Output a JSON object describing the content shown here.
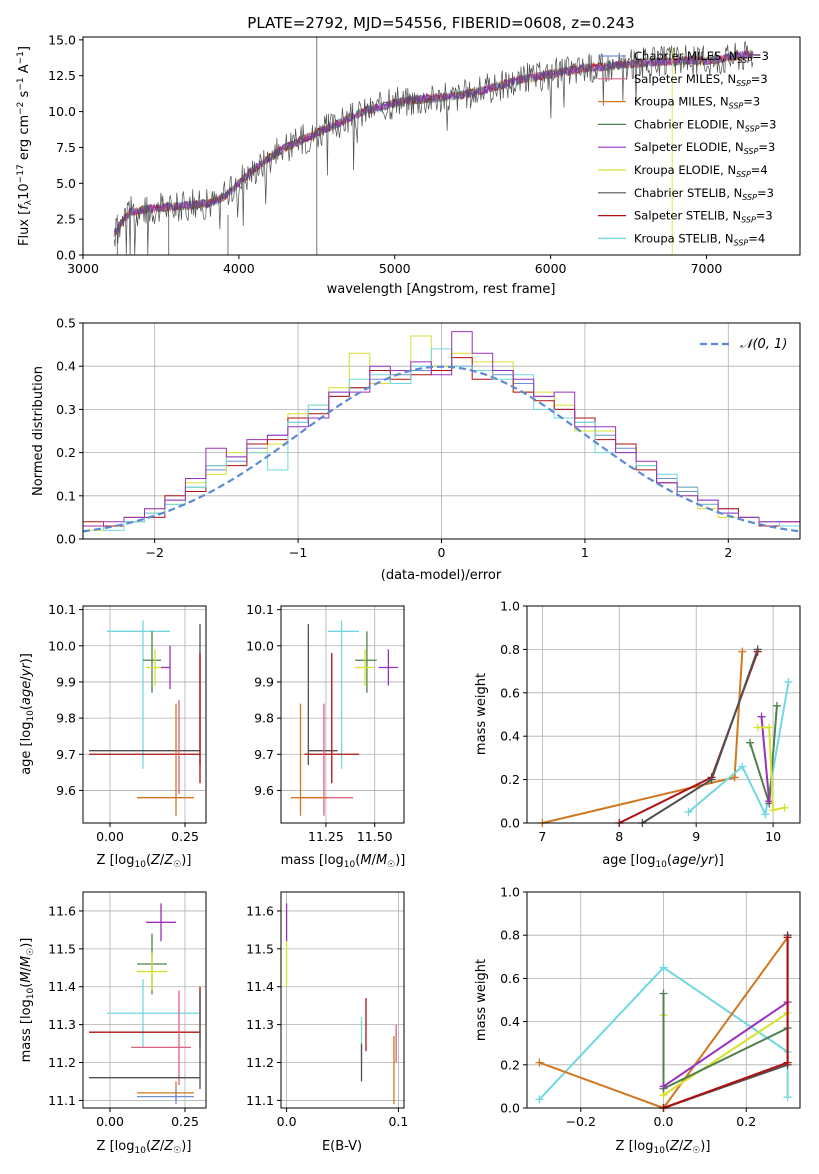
{
  "colors": {
    "Chabrier MILES": "#6f8fd0",
    "Salpeter MILES": "#e06080",
    "Kroupa MILES": "#d07820",
    "Chabrier ELODIE": "#4f8050",
    "Salpeter ELODIE": "#9a30c0",
    "Kroupa ELODIE": "#d8e030",
    "Chabrier STELIB": "#505050",
    "Salpeter STELIB": "#b01010",
    "Kroupa STELIB": "#70d8e0"
  },
  "chart_data": [
    {
      "id": "spectrum",
      "type": "line",
      "title": "PLATE=2792, MJD=54556, FIBERID=0608, z=0.243",
      "xlabel": "wavelength [Angstrom, rest frame]",
      "ylabel": "Flux [f_λ10⁻¹⁷ erg cm⁻² s⁻¹ A⁻¹]",
      "xlim": [
        3000,
        7600
      ],
      "ylim": [
        0,
        15.2
      ],
      "xticks": [
        "3000",
        "4000",
        "5000",
        "6000",
        "7000"
      ],
      "yticks": [
        "0.0",
        "2.5",
        "5.0",
        "7.5",
        "10.0",
        "12.5",
        "15.0"
      ],
      "legend": [
        "Chabrier MILES, N_SSP=3",
        "Salpeter MILES, N_SSP=3",
        "Kroupa MILES, N_SSP=3",
        "Chabrier ELODIE, N_SSP=3",
        "Salpeter ELODIE, N_SSP=3",
        "Kroupa ELODIE, N_SSP=4",
        "Chabrier STELIB, N_SSP=3",
        "Salpeter STELIB, N_SSP=3",
        "Kroupa STELIB, N_SSP=4"
      ],
      "legend_placement": "right",
      "x": [
        3200,
        3300,
        3400,
        3500,
        3600,
        3700,
        3800,
        3900,
        4000,
        4100,
        4200,
        4300,
        4400,
        4500,
        4600,
        4700,
        4800,
        4900,
        5000,
        5100,
        5200,
        5300,
        5400,
        5500,
        5600,
        5700,
        5800,
        5900,
        6000,
        6100,
        6200,
        6300,
        6400,
        6500,
        6600,
        6700,
        6800,
        6900,
        7000,
        7100,
        7200,
        7300
      ],
      "y": [
        1.5,
        3.0,
        3.2,
        3.3,
        3.4,
        3.5,
        3.6,
        4.0,
        5.0,
        6.0,
        6.8,
        7.5,
        8.0,
        8.5,
        9.0,
        9.5,
        10.0,
        10.3,
        10.6,
        10.8,
        10.9,
        11.0,
        11.1,
        11.3,
        11.6,
        11.9,
        12.2,
        12.4,
        12.6,
        12.8,
        13.0,
        13.1,
        13.2,
        13.3,
        13.4,
        13.5,
        13.5,
        13.6,
        13.5,
        13.7,
        13.9,
        14.0
      ]
    },
    {
      "id": "residuals",
      "type": "line",
      "xlabel": "(data-model)/error",
      "ylabel": "Normed distribution",
      "xlim": [
        -2.5,
        2.5
      ],
      "ylim": [
        0,
        0.5
      ],
      "xticks": [
        "−2",
        "−1",
        "0",
        "1",
        "2"
      ],
      "yticks": [
        "0.0",
        "0.1",
        "0.2",
        "0.3",
        "0.4",
        "0.5"
      ],
      "legend": [
        "𝒩(0, 1)"
      ],
      "legend_placement": "top-right",
      "grid": true
    },
    {
      "id": "age-vs-Z",
      "type": "scatter",
      "xlabel": "Z [log₁₀(Z/Z☉)]",
      "ylabel": "age  [log₁₀(age/yr)]",
      "xlim": [
        -0.09,
        0.32
      ],
      "ylim": [
        9.51,
        10.11
      ],
      "xticks": [
        "0.00",
        "0.25"
      ],
      "yticks": [
        "9.6",
        "9.7",
        "9.8",
        "9.9",
        "10.0",
        "10.1"
      ],
      "grid": true
    },
    {
      "id": "age-vs-mass",
      "type": "scatter",
      "xlabel": "mass [log₁₀(M/M☉)]",
      "xlim": [
        11.02,
        11.65
      ],
      "ylim": [
        9.51,
        10.11
      ],
      "xticks": [
        "11.25",
        "11.50"
      ],
      "yticks": [
        "9.6",
        "9.7",
        "9.8",
        "9.9",
        "10.0",
        "10.1"
      ],
      "grid": true
    },
    {
      "id": "weight-vs-age",
      "type": "line",
      "xlabel": "age  [log₁₀(age/yr)]",
      "ylabel": "mass weight",
      "xlim": [
        6.8,
        10.35
      ],
      "ylim": [
        0,
        1.0
      ],
      "xticks": [
        "7",
        "8",
        "9",
        "10"
      ],
      "yticks": [
        "0.0",
        "0.2",
        "0.4",
        "0.6",
        "0.8",
        "1.0"
      ],
      "grid": true
    },
    {
      "id": "mass-vs-Z",
      "type": "scatter",
      "xlabel": "Z [log₁₀(Z/Z☉)]",
      "ylabel": "mass [log₁₀(M/M☉)]",
      "xlim": [
        -0.09,
        0.32
      ],
      "ylim": [
        11.08,
        11.65
      ],
      "xticks": [
        "0.00",
        "0.25"
      ],
      "yticks": [
        "11.1",
        "11.2",
        "11.3",
        "11.4",
        "11.5",
        "11.6"
      ],
      "grid": true
    },
    {
      "id": "mass-vs-ebv",
      "type": "scatter",
      "xlabel": "E(B-V)",
      "xlim": [
        -0.005,
        0.105
      ],
      "ylim": [
        11.08,
        11.65
      ],
      "xticks": [
        "0.0",
        "0.1"
      ],
      "yticks": [
        "11.1",
        "11.2",
        "11.3",
        "11.4",
        "11.5",
        "11.6"
      ],
      "grid": true
    },
    {
      "id": "weight-vs-Z",
      "type": "line",
      "xlabel": "Z [log₁₀(Z/Z☉)]",
      "ylabel": "mass weight",
      "xlim": [
        -0.33,
        0.33
      ],
      "ylim": [
        0,
        1.0
      ],
      "xticks": [
        "−0.2",
        "0.0",
        "0.2"
      ],
      "yticks": [
        "0.0",
        "0.2",
        "0.4",
        "0.6",
        "0.8",
        "1.0"
      ],
      "grid": true
    }
  ],
  "residual_curves": [
    {
      "name": "Chabrier MILES",
      "values": [
        0.03,
        0.03,
        0.04,
        0.06,
        0.09,
        0.12,
        0.16,
        0.18,
        0.21,
        0.24,
        0.27,
        0.3,
        0.33,
        0.35,
        0.37,
        0.38,
        0.39,
        0.4,
        0.4,
        0.39,
        0.38,
        0.36,
        0.33,
        0.3,
        0.27,
        0.24,
        0.21,
        0.17,
        0.14,
        0.11,
        0.09,
        0.07,
        0.05,
        0.04,
        0.03
      ]
    },
    {
      "name": "Kroupa ELODIE",
      "values": [
        0.02,
        0.03,
        0.04,
        0.07,
        0.08,
        0.13,
        0.15,
        0.2,
        0.2,
        0.22,
        0.29,
        0.31,
        0.35,
        0.43,
        0.36,
        0.39,
        0.47,
        0.4,
        0.43,
        0.41,
        0.41,
        0.34,
        0.34,
        0.31,
        0.25,
        0.25,
        0.2,
        0.17,
        0.13,
        0.1,
        0.07,
        0.05,
        0.05,
        0.03,
        0.03
      ]
    },
    {
      "name": "Salpeter STELIB",
      "values": [
        0.04,
        0.03,
        0.05,
        0.05,
        0.1,
        0.11,
        0.17,
        0.17,
        0.22,
        0.23,
        0.28,
        0.29,
        0.33,
        0.35,
        0.39,
        0.37,
        0.38,
        0.39,
        0.42,
        0.37,
        0.39,
        0.34,
        0.32,
        0.3,
        0.28,
        0.23,
        0.22,
        0.16,
        0.13,
        0.12,
        0.08,
        0.07,
        0.05,
        0.03,
        0.04
      ]
    },
    {
      "name": "Kroupa STELIB",
      "values": [
        0.03,
        0.02,
        0.04,
        0.06,
        0.08,
        0.12,
        0.17,
        0.19,
        0.2,
        0.16,
        0.27,
        0.31,
        0.34,
        0.37,
        0.38,
        0.36,
        0.4,
        0.44,
        0.4,
        0.39,
        0.37,
        0.38,
        0.3,
        0.28,
        0.27,
        0.2,
        0.2,
        0.17,
        0.15,
        0.12,
        0.08,
        0.06,
        0.05,
        0.04,
        0.03
      ]
    },
    {
      "name": "Salpeter ELODIE",
      "values": [
        0.03,
        0.04,
        0.05,
        0.07,
        0.09,
        0.14,
        0.21,
        0.19,
        0.23,
        0.24,
        0.26,
        0.28,
        0.34,
        0.34,
        0.4,
        0.39,
        0.41,
        0.38,
        0.48,
        0.43,
        0.39,
        0.37,
        0.33,
        0.34,
        0.26,
        0.26,
        0.2,
        0.18,
        0.13,
        0.1,
        0.09,
        0.06,
        0.05,
        0.04,
        0.04
      ]
    }
  ],
  "age_z_points": [
    {
      "name": "Kroupa STELIB",
      "x": 0.11,
      "xerr": [
        0.12,
        0.09
      ],
      "y": 10.04,
      "yerr": [
        0.38,
        0.03
      ]
    },
    {
      "name": "Chabrier ELODIE",
      "x": 0.14,
      "xerr": [
        0.03,
        0.03
      ],
      "y": 9.96,
      "yerr": [
        0.09,
        0.08
      ]
    },
    {
      "name": "Kroupa ELODIE",
      "x": 0.15,
      "xerr": [
        0.03,
        0.03
      ],
      "y": 9.94,
      "yerr": [
        0.05,
        0.05
      ]
    },
    {
      "name": "Chabrier STELIB",
      "x": 0.3,
      "xerr": [
        0.37,
        0.0
      ],
      "y": 9.71,
      "yerr": [
        0.04,
        0.35
      ]
    },
    {
      "name": "Salpeter STELIB",
      "x": 0.3,
      "xerr": [
        0.37,
        0.0
      ],
      "y": 9.7,
      "yerr": [
        0.08,
        0.28
      ]
    },
    {
      "name": "Kroupa MILES",
      "x": 0.22,
      "xerr": [
        0.13,
        0.06
      ],
      "y": 9.58,
      "yerr": [
        0.05,
        0.26
      ]
    }
  ]
}
